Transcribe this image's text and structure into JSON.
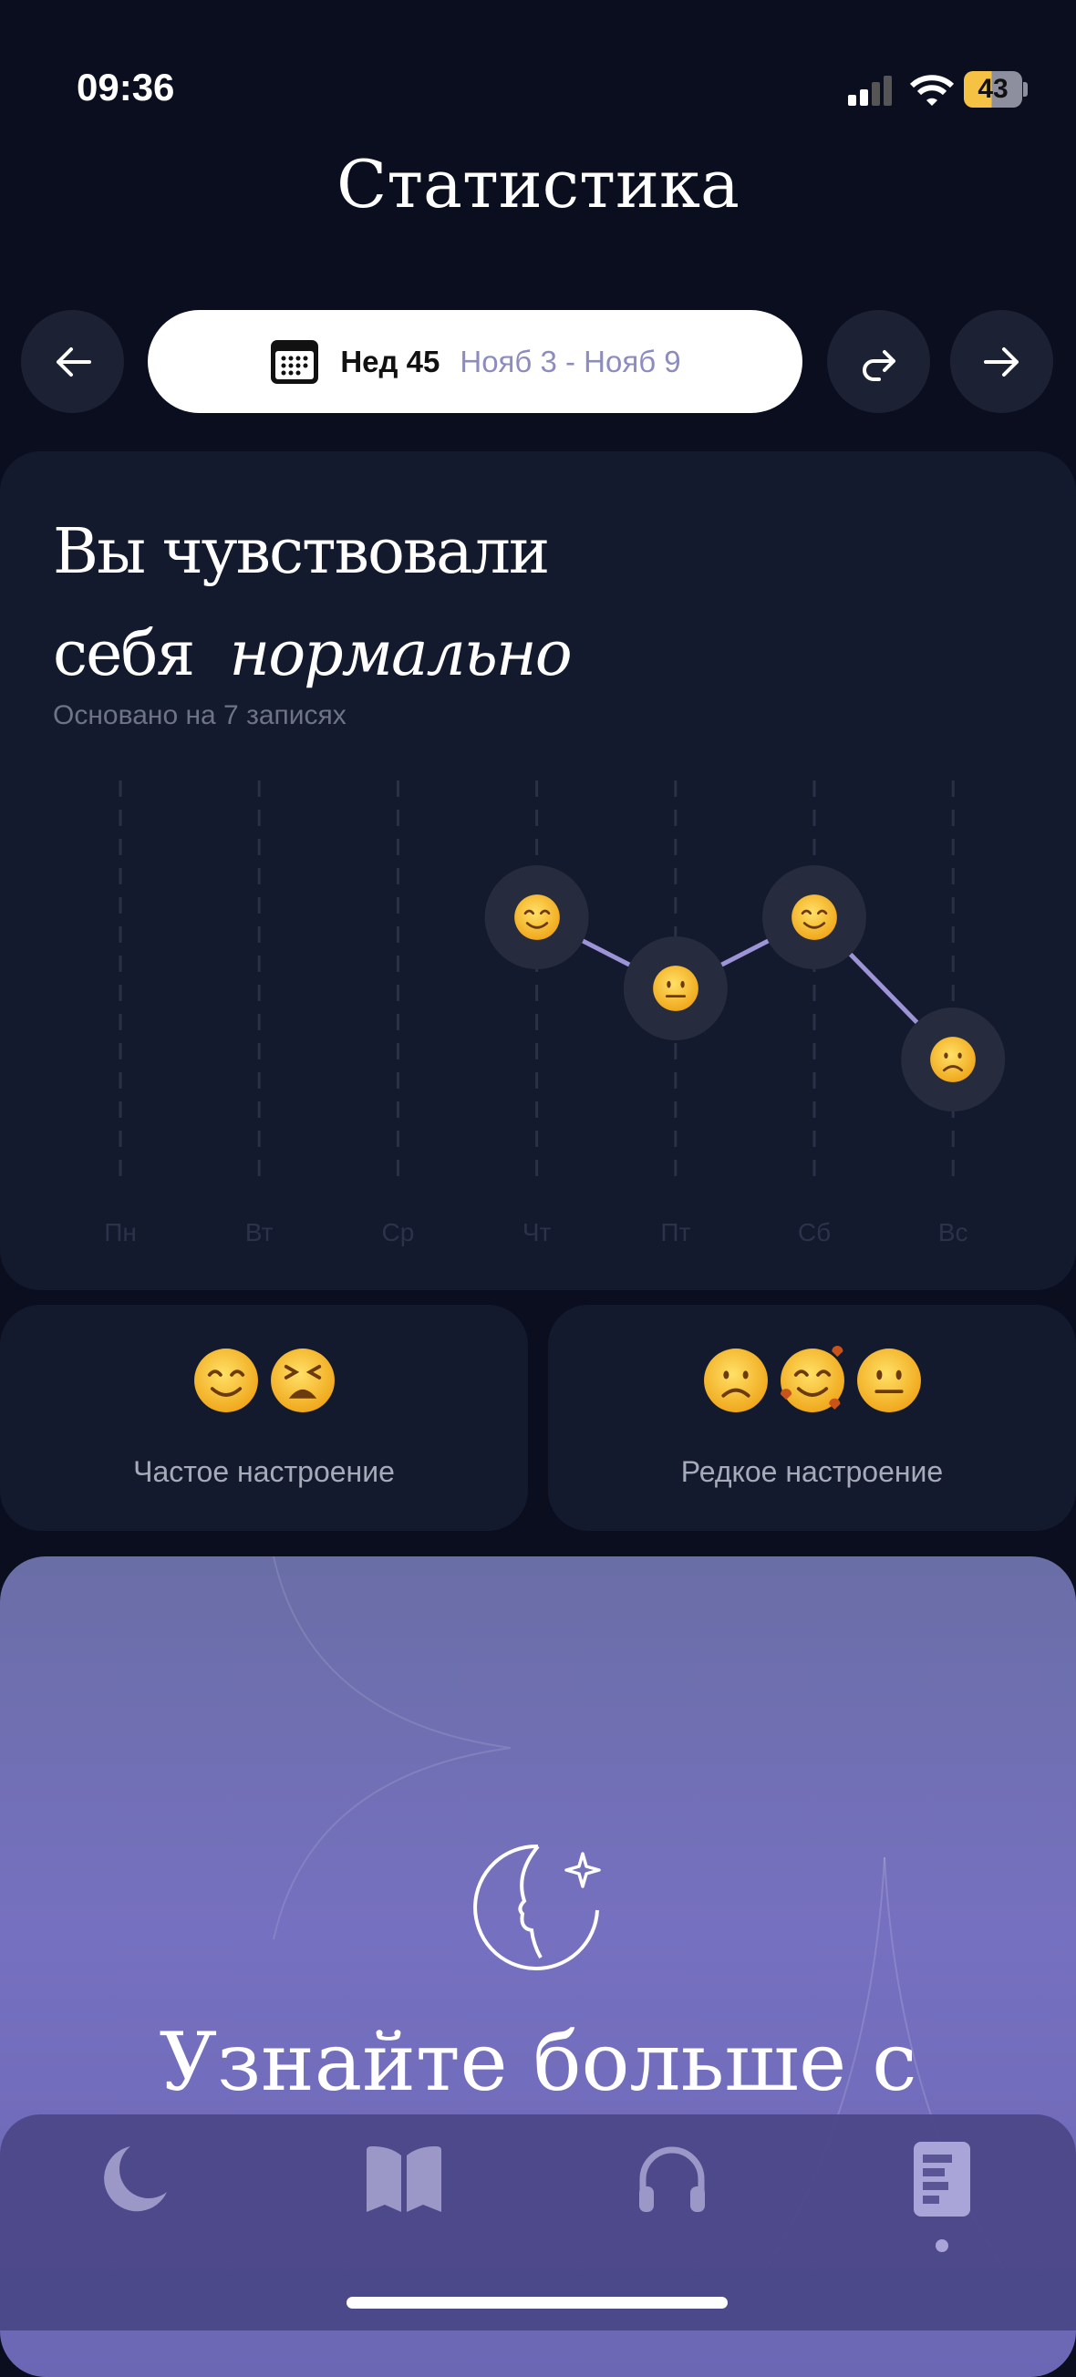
{
  "status_bar": {
    "time": "09:36",
    "battery": "43",
    "battery_color": "#f5c243"
  },
  "header": {
    "title": "Статистика"
  },
  "week_nav": {
    "week_label": "Нед 45",
    "date_range": "Нояб 3 - Нояб 9",
    "prev_icon": "arrow-left-icon",
    "next_icon": "arrow-right-icon",
    "share_icon": "redo-arrow-icon",
    "calendar_icon": "calendar-icon"
  },
  "summary": {
    "line1": "Вы чувствовали",
    "line2_prefix": "себя",
    "mood_word": "нормально",
    "based_on": "Основано на 7 записях"
  },
  "chart_data": {
    "type": "line",
    "categories": [
      "Пн",
      "Вт",
      "Ср",
      "Чт",
      "Пт",
      "Сб",
      "Вс"
    ],
    "values": [
      null,
      null,
      null,
      4,
      3,
      4,
      2
    ],
    "markers": [
      null,
      null,
      null,
      "smiling",
      "neutral",
      "smiling",
      "frowning"
    ],
    "ylim": [
      1,
      5
    ],
    "line_color": "#9d94d8",
    "grid": "dashed vertical"
  },
  "mood_cards": [
    {
      "label": "Частое настроение",
      "emojis": [
        "smiling",
        "tired"
      ]
    },
    {
      "label": "Редкое настроение",
      "emojis": [
        "frowning",
        "smiling-hearts",
        "neutral"
      ]
    }
  ],
  "promo": {
    "text": "Узнайте больше с",
    "icon": "moon-face-star-icon"
  },
  "tab_bar": {
    "items": [
      {
        "icon": "moon-icon"
      },
      {
        "icon": "book-icon"
      },
      {
        "icon": "headphones-icon"
      },
      {
        "icon": "journal-icon",
        "active": true
      }
    ]
  }
}
